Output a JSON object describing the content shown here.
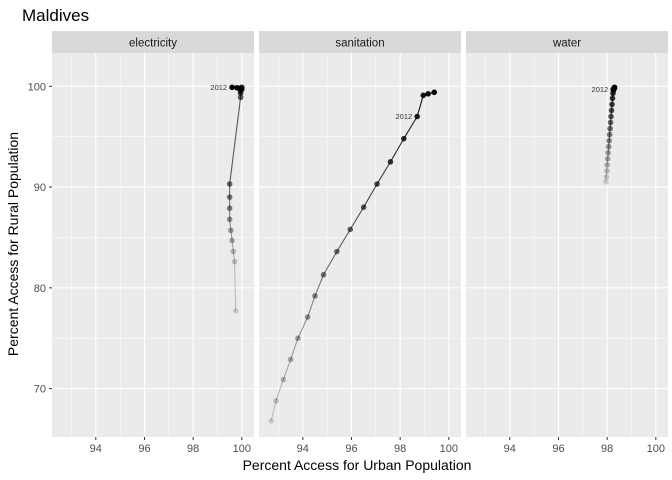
{
  "chart_data": {
    "type": "scatter",
    "title": "Maldives",
    "xlabel": "Percent Access for Urban Population",
    "ylabel": "Percent Access for Rural Population",
    "xlim": [
      92.2,
      100.5
    ],
    "ylim": [
      65.2,
      103.3
    ],
    "x_ticks": [
      94,
      96,
      98,
      100
    ],
    "y_ticks": [
      70,
      80,
      90,
      100
    ],
    "grid": true,
    "point_color": "#000000",
    "line_color": "#000000",
    "panels": [
      {
        "name": "electricity",
        "annotation": "2012",
        "annotation_index": 16,
        "points": [
          {
            "x": 99.75,
            "y": 77.7
          },
          {
            "x": 99.7,
            "y": 82.6
          },
          {
            "x": 99.65,
            "y": 83.6
          },
          {
            "x": 99.6,
            "y": 84.7
          },
          {
            "x": 99.55,
            "y": 85.7
          },
          {
            "x": 99.5,
            "y": 86.8
          },
          {
            "x": 99.5,
            "y": 87.9
          },
          {
            "x": 99.5,
            "y": 89.0
          },
          {
            "x": 99.5,
            "y": 90.3
          },
          {
            "x": 99.95,
            "y": 98.9
          },
          {
            "x": 99.95,
            "y": 99.3
          },
          {
            "x": 99.95,
            "y": 99.5
          },
          {
            "x": 100.0,
            "y": 99.7
          },
          {
            "x": 100.0,
            "y": 99.9
          },
          {
            "x": 99.9,
            "y": 99.8
          },
          {
            "x": 99.8,
            "y": 99.85
          },
          {
            "x": 99.6,
            "y": 99.9
          }
        ]
      },
      {
        "name": "sanitation",
        "annotation": "2012",
        "annotation_index": 14,
        "points": [
          {
            "x": 92.7,
            "y": 66.8
          },
          {
            "x": 92.9,
            "y": 68.8
          },
          {
            "x": 93.2,
            "y": 70.9
          },
          {
            "x": 93.5,
            "y": 72.9
          },
          {
            "x": 93.8,
            "y": 75.0
          },
          {
            "x": 94.2,
            "y": 77.1
          },
          {
            "x": 94.5,
            "y": 79.2
          },
          {
            "x": 94.85,
            "y": 81.3
          },
          {
            "x": 95.4,
            "y": 83.6
          },
          {
            "x": 95.95,
            "y": 85.8
          },
          {
            "x": 96.5,
            "y": 88.0
          },
          {
            "x": 97.05,
            "y": 90.3
          },
          {
            "x": 97.6,
            "y": 92.5
          },
          {
            "x": 98.15,
            "y": 94.8
          },
          {
            "x": 98.7,
            "y": 97.0
          },
          {
            "x": 98.95,
            "y": 99.1
          },
          {
            "x": 99.15,
            "y": 99.25
          },
          {
            "x": 99.4,
            "y": 99.4
          }
        ]
      },
      {
        "name": "water",
        "annotation": "2012",
        "annotation_index": 19,
        "points": [
          {
            "x": 97.95,
            "y": 90.5
          },
          {
            "x": 97.97,
            "y": 91.0
          },
          {
            "x": 97.99,
            "y": 91.6
          },
          {
            "x": 98.0,
            "y": 92.2
          },
          {
            "x": 98.02,
            "y": 92.8
          },
          {
            "x": 98.04,
            "y": 93.4
          },
          {
            "x": 98.06,
            "y": 94.0
          },
          {
            "x": 98.08,
            "y": 94.6
          },
          {
            "x": 98.1,
            "y": 95.2
          },
          {
            "x": 98.12,
            "y": 95.8
          },
          {
            "x": 98.14,
            "y": 96.4
          },
          {
            "x": 98.16,
            "y": 97.0
          },
          {
            "x": 98.18,
            "y": 97.6
          },
          {
            "x": 98.2,
            "y": 98.2
          },
          {
            "x": 98.22,
            "y": 98.8
          },
          {
            "x": 98.24,
            "y": 99.3
          },
          {
            "x": 98.26,
            "y": 99.6
          },
          {
            "x": 98.3,
            "y": 99.8
          },
          {
            "x": 98.3,
            "y": 99.9
          },
          {
            "x": 98.25,
            "y": 99.7
          }
        ]
      }
    ]
  }
}
